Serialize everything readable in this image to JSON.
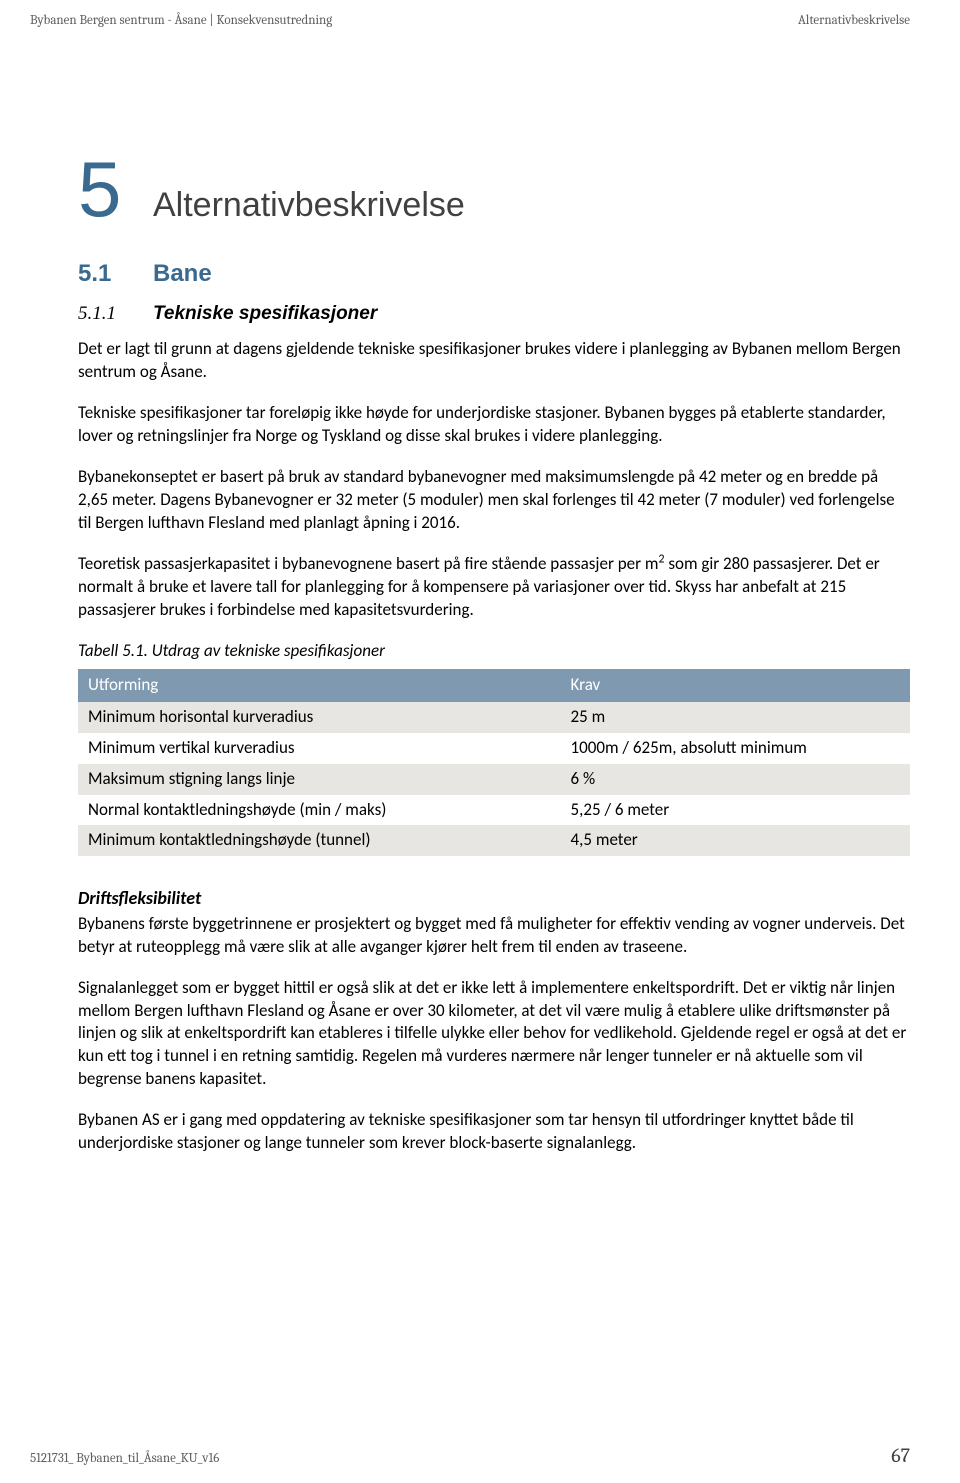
{
  "header": {
    "left": "Bybanen Bergen sentrum - Åsane | Konsekvensutredning",
    "right": "Alternativbeskrivelse"
  },
  "chapter": {
    "number": "5",
    "title": "Alternativbeskrivelse"
  },
  "section": {
    "number": "5.1",
    "title": "Bane"
  },
  "subsection": {
    "number": "5.1.1",
    "title": "Tekniske spesifikasjoner"
  },
  "paragraphs": {
    "p1": "Det er lagt til grunn at dagens gjeldende tekniske spesifikasjoner brukes videre i planlegging av Bybanen mellom Bergen sentrum og Åsane.",
    "p2": "Tekniske spesifikasjoner tar foreløpig ikke høyde for underjordiske stasjoner.  Bybanen bygges på etablerte standarder, lover og retningslinjer fra Norge og Tyskland og disse skal brukes i videre planlegging.",
    "p3": "Bybanekonseptet er basert på bruk av standard bybanevogner med maksimumslengde på 42 meter og en bredde på 2,65 meter.  Dagens Bybanevogner er 32 meter (5 moduler) men skal forlenges til 42 meter (7 moduler) ved forlengelse til Bergen lufthavn Flesland med planlagt åpning i 2016.",
    "p4a": "Teoretisk passasjerkapasitet i bybanevognene basert på fire stående passasjer per m",
    "p4sup": "2",
    "p4b": " som gir 280 passasjerer.  Det er normalt å bruke et lavere tall for planlegging for å kompensere på variasjoner over tid. Skyss har anbefalt at 215 passasjerer brukes i forbindelse med kapasitetsvurdering."
  },
  "table": {
    "caption": "Tabell 5.1. Utdrag av tekniske spesifikasjoner",
    "header_col1": "Utforming",
    "header_col2": "Krav",
    "header_bg": "#7f99b0",
    "row_odd_bg": "#e8e6e3",
    "row_even_bg": "#ffffff",
    "rows": [
      {
        "c1": "Minimum horisontal kurveradius",
        "c2": "25 m"
      },
      {
        "c1": "Minimum vertikal kurveradius",
        "c2": "1000m / 625m, absolutt minimum"
      },
      {
        "c1": "Maksimum stigning langs linje",
        "c2": "6 %"
      },
      {
        "c1": "Normal kontaktledningshøyde (min / maks)",
        "c2": "5,25 / 6 meter"
      },
      {
        "c1": "Minimum kontaktledningshøyde (tunnel)",
        "c2": "4,5 meter"
      }
    ]
  },
  "subheading": "Driftsfleksibilitet",
  "paragraphs2": {
    "p5": "Bybanens første byggetrinnene er prosjektert og bygget med få muligheter for effektiv vending av vogner underveis.  Det betyr at ruteopplegg må være slik at alle avganger kjører helt frem til enden av traseene.",
    "p6": "Signalanlegget som er bygget hittil er også slik at det er ikke lett å implementere enkeltspordrift.  Det er viktig når linjen mellom Bergen lufthavn Flesland og Åsane er over 30 kilometer, at det vil være mulig å etablere ulike driftsmønster på linjen og slik at enkeltspordrift kan etableres i tilfelle ulykke eller behov for vedlikehold.   Gjeldende regel er også at det er kun ett tog i tunnel i en retning samtidig.   Regelen må vurderes nærmere når lenger tunneler er nå aktuelle som vil begrense banens kapasitet.",
    "p7": "Bybanen AS er i gang med oppdatering av tekniske spesifikasjoner som tar hensyn til utfordringer knyttet både til underjordiske stasjoner og lange tunneler som krever block-baserte signalanlegg."
  },
  "footer": {
    "left": "5121731_ Bybanen_til_Åsane_KU_v16",
    "page": "67"
  }
}
